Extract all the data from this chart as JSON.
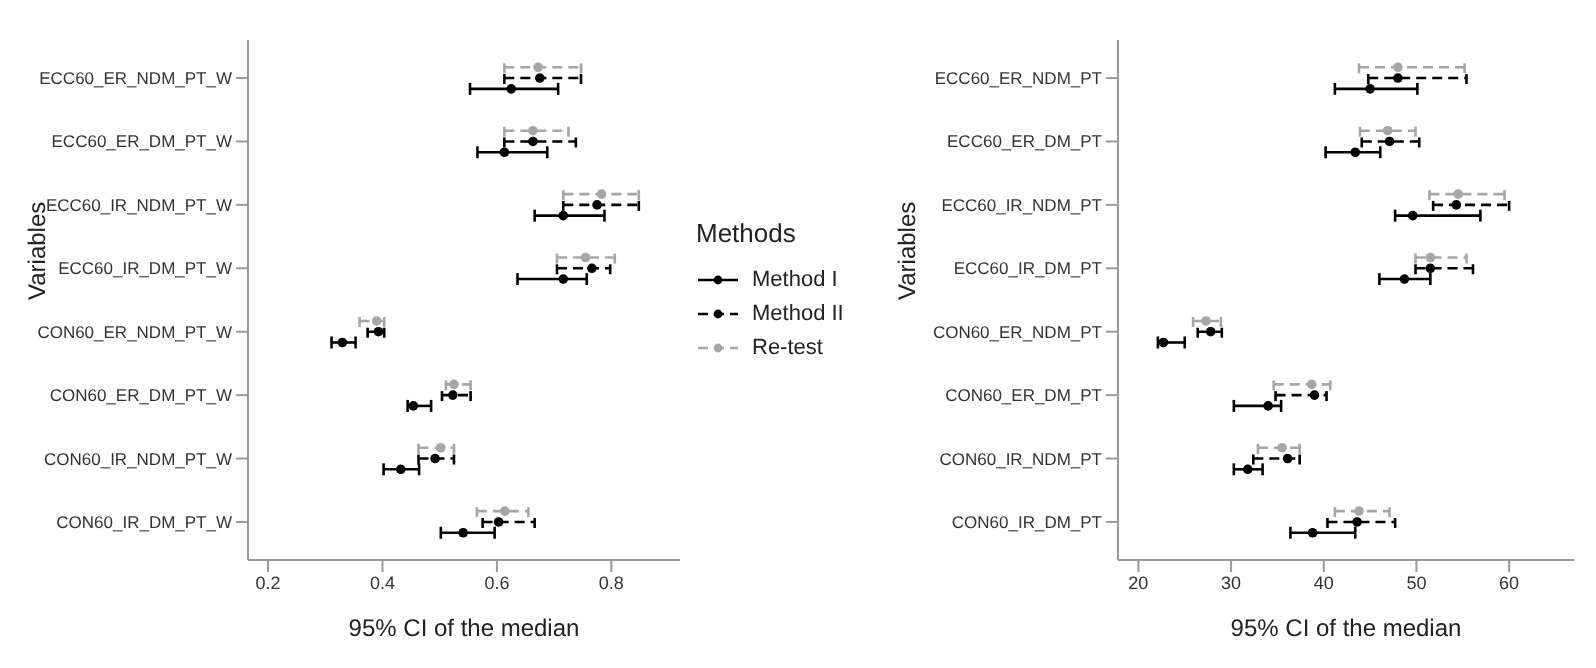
{
  "chart_data": [
    {
      "type": "scatter",
      "orientation": "horizontal",
      "xlabel": "95% CI of the median",
      "ylabel": "Variables",
      "legend_title": "Methods",
      "legend": "right",
      "marker": "circle",
      "categories": [
        "ECC60_ER_NDM_PT_W",
        "ECC60_ER_DM_PT_W",
        "ECC60_IR_NDM_PT_W",
        "ECC60_IR_DM_PT_W",
        "CON60_ER_NDM_PT_W",
        "CON60_ER_DM_PT_W",
        "CON60_IR_NDM_PT_W",
        "CON60_IR_DM_PT_W"
      ],
      "xlim": [
        0.165,
        0.92
      ],
      "xticks": [
        0.2,
        0.4,
        0.6,
        0.8
      ],
      "series": [
        {
          "name": "Method I",
          "color": "#000000",
          "line_style": "solid",
          "values": [
            0.625,
            0.613,
            0.716,
            0.716,
            0.33,
            0.454,
            0.432,
            0.541
          ],
          "errors": [
            [
              0.553,
              0.707
            ],
            [
              0.566,
              0.688
            ],
            [
              0.666,
              0.788
            ],
            [
              0.636,
              0.757
            ],
            [
              0.311,
              0.353
            ],
            [
              0.444,
              0.485
            ],
            [
              0.402,
              0.464
            ],
            [
              0.502,
              0.596
            ]
          ]
        },
        {
          "name": "Method II",
          "color": "#000000",
          "line_style": "dashed",
          "values": [
            0.675,
            0.663,
            0.775,
            0.766,
            0.393,
            0.523,
            0.492,
            0.603
          ],
          "errors": [
            [
              0.613,
              0.747
            ],
            [
              0.613,
              0.738
            ],
            [
              0.716,
              0.848
            ],
            [
              0.705,
              0.798
            ],
            [
              0.374,
              0.403
            ],
            [
              0.504,
              0.554
            ],
            [
              0.463,
              0.525
            ],
            [
              0.575,
              0.666
            ]
          ]
        },
        {
          "name": "Re-test",
          "color": "#a6a6a6",
          "line_style": "dashed",
          "values": [
            0.672,
            0.663,
            0.783,
            0.755,
            0.39,
            0.525,
            0.502,
            0.614
          ],
          "errors": [
            [
              0.613,
              0.747
            ],
            [
              0.613,
              0.725
            ],
            [
              0.716,
              0.848
            ],
            [
              0.705,
              0.806
            ],
            [
              0.36,
              0.403
            ],
            [
              0.511,
              0.554
            ],
            [
              0.463,
              0.525
            ],
            [
              0.565,
              0.655
            ]
          ]
        }
      ]
    },
    {
      "type": "scatter",
      "orientation": "horizontal",
      "xlabel": "95% CI of the median",
      "ylabel": "Variables",
      "marker": "circle",
      "categories": [
        "ECC60_ER_NDM_PT",
        "ECC60_ER_DM_PT",
        "ECC60_IR_NDM_PT",
        "ECC60_IR_DM_PT",
        "CON60_ER_NDM_PT",
        "CON60_ER_DM_PT",
        "CON60_IR_NDM_PT",
        "CON60_IR_DM_PT"
      ],
      "xlim": [
        17.8,
        67
      ],
      "xticks": [
        20,
        30,
        40,
        50,
        60
      ],
      "series": [
        {
          "color": "#000000",
          "line_style": "solid",
          "values": [
            45.0,
            43.4,
            49.6,
            48.7,
            22.7,
            34.0,
            31.8,
            38.8
          ],
          "errors": [
            [
              41.2,
              50.1
            ],
            [
              40.2,
              46.1
            ],
            [
              47.7,
              56.9
            ],
            [
              46.0,
              51.5
            ],
            [
              22.1,
              25.0
            ],
            [
              30.3,
              35.4
            ],
            [
              30.3,
              33.4
            ],
            [
              36.4,
              43.4
            ]
          ]
        },
        {
          "color": "#000000",
          "line_style": "dashed",
          "values": [
            48.0,
            47.1,
            54.3,
            51.5,
            27.8,
            39.0,
            36.1,
            43.6
          ],
          "errors": [
            [
              44.8,
              55.4
            ],
            [
              44.1,
              50.3
            ],
            [
              51.8,
              60.0
            ],
            [
              49.9,
              56.1
            ],
            [
              26.4,
              29.0
            ],
            [
              34.8,
              40.3
            ],
            [
              32.4,
              37.4
            ],
            [
              40.4,
              47.7
            ]
          ]
        },
        {
          "color": "#a6a6a6",
          "line_style": "dashed",
          "values": [
            48.0,
            46.9,
            54.5,
            51.5,
            27.3,
            38.7,
            35.5,
            43.8
          ],
          "errors": [
            [
              43.8,
              55.2
            ],
            [
              43.9,
              49.9
            ],
            [
              51.4,
              59.5
            ],
            [
              49.9,
              55.4
            ],
            [
              25.9,
              28.9
            ],
            [
              34.6,
              40.7
            ],
            [
              32.9,
              37.4
            ],
            [
              41.2,
              47.1
            ]
          ]
        }
      ]
    }
  ]
}
